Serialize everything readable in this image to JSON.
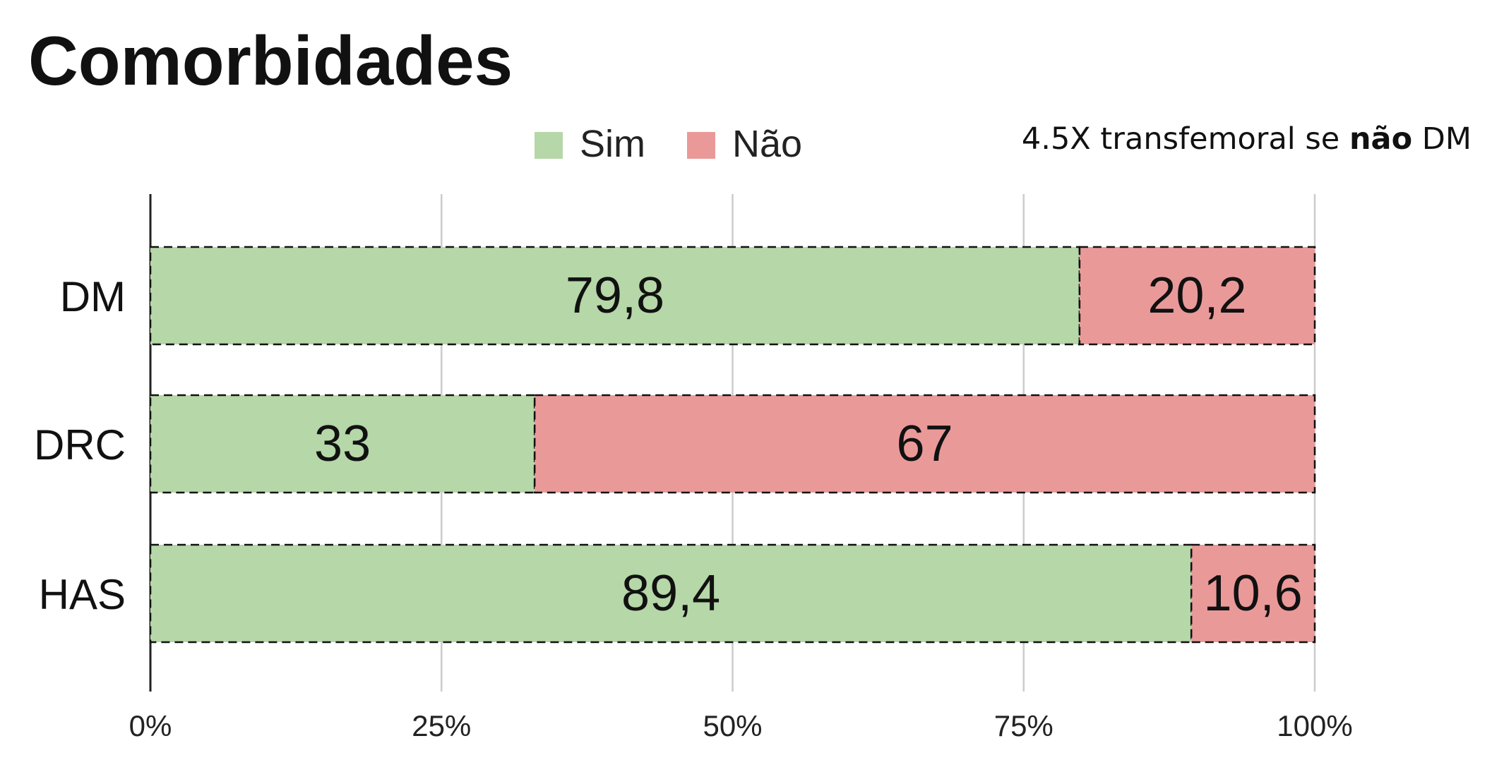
{
  "page": {
    "title": "Comorbidades",
    "annotation": {
      "before": "4.5X transfemoral se ",
      "bold": "não",
      "after": " DM"
    }
  },
  "chart_data": {
    "type": "bar",
    "orientation": "horizontal",
    "stacked": true,
    "title": "Comorbidades",
    "categories": [
      "DM",
      "DRC",
      "HAS"
    ],
    "series": [
      {
        "name": "Sim",
        "values": [
          79.8,
          33,
          89.4
        ],
        "labels": [
          "79,8",
          "33",
          "89,4"
        ],
        "color": "#b6d7a8"
      },
      {
        "name": "Não",
        "values": [
          20.2,
          67,
          10.6
        ],
        "labels": [
          "20,2",
          "67",
          "10,6"
        ],
        "color": "#ea9999"
      }
    ],
    "xlim": [
      0,
      100
    ],
    "xticks": [
      0,
      25,
      50,
      75,
      100
    ],
    "xtick_labels": [
      "0%",
      "25%",
      "50%",
      "75%",
      "100%"
    ],
    "xlabel": "",
    "ylabel": "",
    "grid": "vertical",
    "legend_position": "top"
  }
}
